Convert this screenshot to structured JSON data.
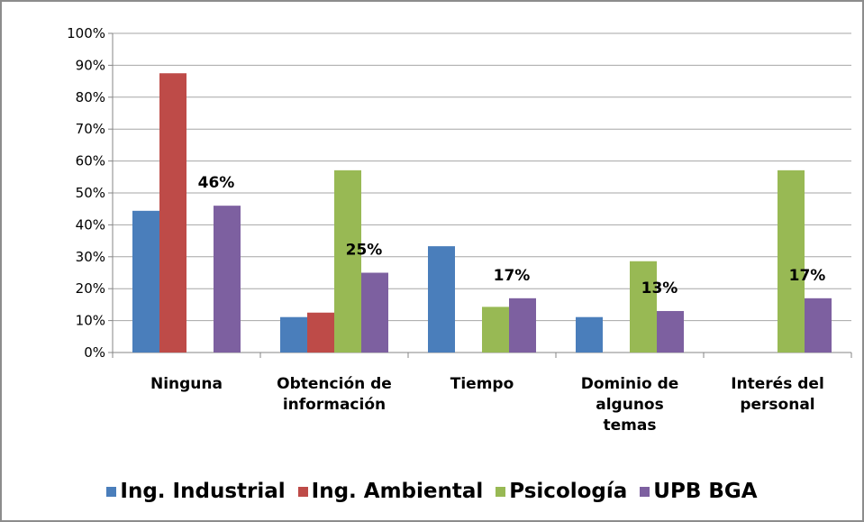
{
  "chart_data": {
    "type": "bar",
    "categories": [
      "Ninguna",
      "Obtención de\ninformación",
      "Tiempo",
      "Dominio de\nalgunos\ntemas",
      "Interés del\npersonal"
    ],
    "series": [
      {
        "name": "Ing. Industrial",
        "color": "#4a7ebb",
        "values": [
          44.4,
          11.1,
          33.3,
          11.1,
          0
        ]
      },
      {
        "name": "Ing. Ambiental",
        "color": "#be4b48",
        "values": [
          87.5,
          12.5,
          0,
          0,
          0
        ]
      },
      {
        "name": "Psicología",
        "color": "#98b954",
        "values": [
          0,
          57.1,
          14.3,
          28.6,
          57.1
        ]
      },
      {
        "name": "UPB BGA",
        "color": "#7d60a0",
        "values": [
          46,
          25,
          17,
          13,
          17
        ],
        "value_labels": [
          "46%",
          "25%",
          "17%",
          "13%",
          "17%"
        ]
      }
    ],
    "ylim": [
      0,
      100
    ],
    "yticks": [
      {
        "value": 0,
        "label": "0%"
      },
      {
        "value": 10,
        "label": "10%"
      },
      {
        "value": 20,
        "label": "20%"
      },
      {
        "value": 30,
        "label": "30%"
      },
      {
        "value": 40,
        "label": "40%"
      },
      {
        "value": 50,
        "label": "50%"
      },
      {
        "value": 60,
        "label": "60%"
      },
      {
        "value": 70,
        "label": "70%"
      },
      {
        "value": 80,
        "label": "80%"
      },
      {
        "value": 90,
        "label": "90%"
      },
      {
        "value": 100,
        "label": "100%"
      }
    ],
    "grid": true,
    "legend": "bottom"
  }
}
